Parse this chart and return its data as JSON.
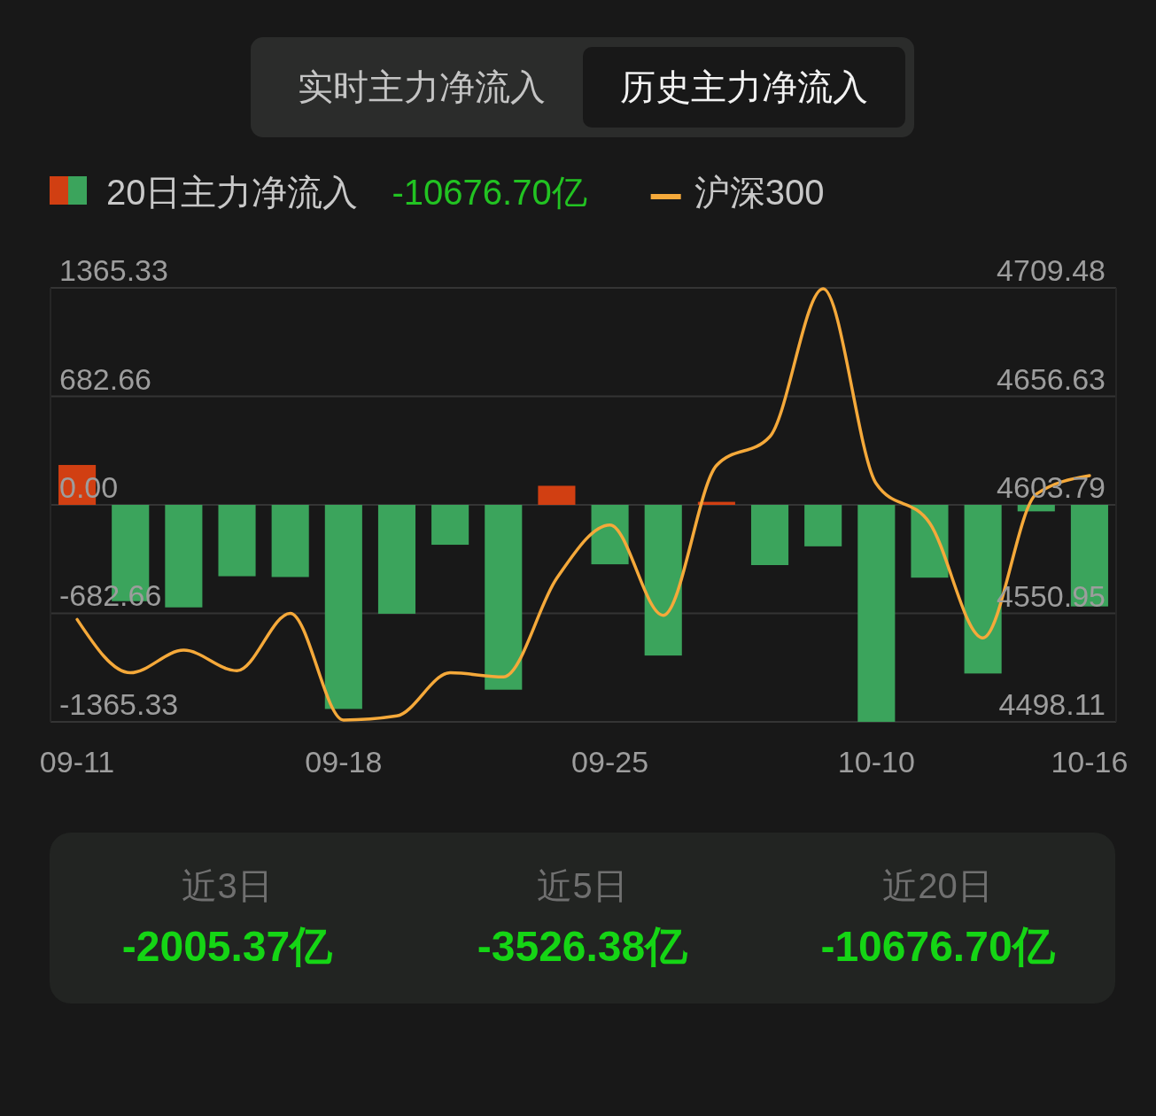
{
  "chart_data": {
    "type": "bar",
    "annotations": [
      "实时主力净流入",
      "历史主力净流入",
      "-10676.70亿",
      "近3日",
      "-2005.37亿",
      "近5日",
      "-3526.38亿",
      "近20日",
      "-10676.70亿"
    ],
    "categories": [
      "09-11",
      null,
      null,
      null,
      null,
      "09-18",
      null,
      null,
      null,
      null,
      "09-25",
      null,
      null,
      null,
      null,
      "10-10",
      null,
      null,
      null,
      "10-16"
    ],
    "series": [
      {
        "name": "20日主力净流入",
        "colors": [
          "#d13f12",
          "#3ba45c",
          "#3ba45c",
          "#3ba45c",
          "#3ba45c",
          "#3ba45c",
          "#3ba45c",
          "#3ba45c",
          "#3ba45c",
          "#d13f12",
          "#3ba45c",
          "#3ba45c",
          "#d13f12",
          "#3ba45c",
          "#3ba45c",
          "#3ba45c",
          "#3ba45c",
          "#3ba45c",
          "#3ba45c",
          "#3ba45c"
        ],
        "values": [
          251,
          -606,
          -645,
          -449,
          -454,
          -1284,
          -685,
          -251,
          -1163,
          120,
          -374,
          -948,
          19,
          -379,
          -261,
          -1365,
          -458,
          -1061,
          -41,
          -639
        ]
      },
      {
        "name": "沪深300",
        "type": "line",
        "axis": "y2",
        "color": "#f5a93a",
        "values": [
          4548,
          4522,
          4533,
          4523,
          4551,
          4499,
          4501,
          4522,
          4520,
          4568,
          4594,
          4550,
          4623,
          4637,
          4709,
          4614,
          4595,
          4539,
          4609,
          4618
        ]
      }
    ],
    "ylim": [
      -1365.33,
      1365.33
    ],
    "yticks": [
      -1365.33,
      -682.66,
      {
        "value": 0,
        "label": "0.00"
      },
      682.66,
      1365.33
    ],
    "y2lim": [
      4498.11,
      4709.48
    ],
    "y2ticks": [
      4498.11,
      4550.95,
      4603.79,
      4656.63,
      4709.48
    ],
    "grid": "y",
    "legend": "top left"
  }
}
